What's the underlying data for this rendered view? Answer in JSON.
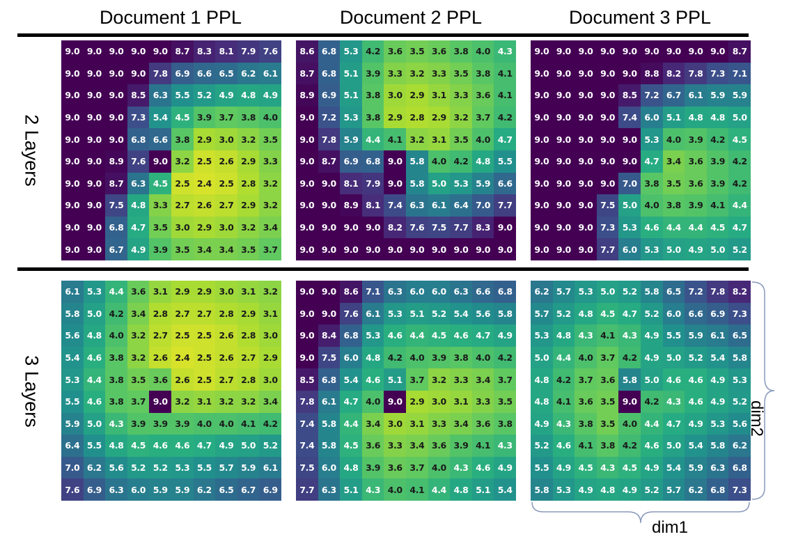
{
  "columns": [
    "Document 1 PPL",
    "Document 2 PPL",
    "Document 3 PPL"
  ],
  "rows": [
    "2 Layers",
    "3 Layers"
  ],
  "axes": {
    "dim1": "dim1",
    "dim2": "dim2"
  },
  "colormap": {
    "name": "viridis",
    "vmin": 2.0,
    "vmax": 9.0
  },
  "chart_data": {
    "type": "heatmap",
    "panels": [
      {
        "row": "2 Layers",
        "column": "Document 1 PPL",
        "values": [
          [
            9.0,
            9.0,
            9.0,
            9.0,
            9.0,
            8.7,
            8.3,
            8.1,
            7.9,
            7.6
          ],
          [
            9.0,
            9.0,
            9.0,
            9.0,
            7.8,
            6.9,
            6.6,
            6.5,
            6.2,
            6.1
          ],
          [
            9.0,
            9.0,
            9.0,
            8.5,
            6.3,
            5.5,
            5.2,
            4.9,
            4.8,
            4.9
          ],
          [
            9.0,
            9.0,
            9.0,
            7.3,
            5.4,
            4.5,
            3.9,
            3.7,
            3.8,
            4.0
          ],
          [
            9.0,
            9.0,
            9.0,
            6.8,
            6.6,
            3.8,
            2.9,
            3.0,
            3.2,
            3.5
          ],
          [
            9.0,
            9.0,
            8.9,
            7.6,
            9.0,
            3.2,
            2.5,
            2.6,
            2.9,
            3.3
          ],
          [
            9.0,
            9.0,
            8.7,
            6.3,
            4.5,
            2.5,
            2.4,
            2.5,
            2.8,
            3.2
          ],
          [
            9.0,
            9.0,
            7.5,
            4.8,
            3.3,
            2.7,
            2.6,
            2.7,
            2.9,
            3.2
          ],
          [
            9.0,
            9.0,
            6.8,
            4.7,
            3.5,
            3.0,
            2.9,
            3.0,
            3.2,
            3.4
          ],
          [
            9.0,
            9.0,
            6.7,
            4.9,
            3.9,
            3.5,
            3.4,
            3.4,
            3.5,
            3.7
          ]
        ]
      },
      {
        "row": "2 Layers",
        "column": "Document 2 PPL",
        "values": [
          [
            8.6,
            6.8,
            5.3,
            4.2,
            3.6,
            3.5,
            3.6,
            3.8,
            4.0,
            4.3
          ],
          [
            8.7,
            6.8,
            5.1,
            3.9,
            3.3,
            3.2,
            3.3,
            3.5,
            3.8,
            4.1
          ],
          [
            8.9,
            6.9,
            5.1,
            3.8,
            3.0,
            2.9,
            3.1,
            3.3,
            3.6,
            4.1
          ],
          [
            9.0,
            7.2,
            5.3,
            3.8,
            2.9,
            2.8,
            2.9,
            3.2,
            3.7,
            4.2
          ],
          [
            9.0,
            7.8,
            5.9,
            4.4,
            4.1,
            3.2,
            3.1,
            3.5,
            4.0,
            4.7
          ],
          [
            9.0,
            8.7,
            6.9,
            6.8,
            9.0,
            5.8,
            4.0,
            4.2,
            4.8,
            5.5
          ],
          [
            9.0,
            9.0,
            8.1,
            7.9,
            9.0,
            5.8,
            5.0,
            5.3,
            5.9,
            6.6
          ],
          [
            9.0,
            9.0,
            8.9,
            8.1,
            7.4,
            6.3,
            6.1,
            6.4,
            7.0,
            7.7
          ],
          [
            9.0,
            9.0,
            9.0,
            9.0,
            8.2,
            7.6,
            7.5,
            7.7,
            8.3,
            9.0
          ],
          [
            9.0,
            9.0,
            9.0,
            9.0,
            9.0,
            9.0,
            9.0,
            9.0,
            9.0,
            9.0
          ]
        ]
      },
      {
        "row": "2 Layers",
        "column": "Document 3 PPL",
        "values": [
          [
            9.0,
            9.0,
            9.0,
            9.0,
            9.0,
            9.0,
            9.0,
            9.0,
            9.0,
            8.7
          ],
          [
            9.0,
            9.0,
            9.0,
            9.0,
            9.0,
            8.8,
            8.2,
            7.8,
            7.3,
            7.1
          ],
          [
            9.0,
            9.0,
            9.0,
            9.0,
            8.5,
            7.2,
            6.7,
            6.1,
            5.9,
            5.9
          ],
          [
            9.0,
            9.0,
            9.0,
            9.0,
            7.4,
            6.0,
            5.1,
            4.8,
            4.8,
            5.0
          ],
          [
            9.0,
            9.0,
            9.0,
            9.0,
            9.0,
            5.3,
            4.0,
            3.9,
            4.2,
            4.5
          ],
          [
            9.0,
            9.0,
            9.0,
            9.0,
            9.0,
            4.7,
            3.4,
            3.6,
            3.9,
            4.2
          ],
          [
            9.0,
            9.0,
            9.0,
            9.0,
            7.0,
            3.8,
            3.5,
            3.6,
            3.9,
            4.2
          ],
          [
            9.0,
            9.0,
            9.0,
            7.5,
            5.0,
            4.0,
            3.8,
            3.9,
            4.1,
            4.4
          ],
          [
            9.0,
            9.0,
            9.0,
            7.3,
            5.3,
            4.6,
            4.4,
            4.4,
            4.5,
            4.7
          ],
          [
            9.0,
            9.0,
            9.0,
            7.7,
            6.0,
            5.3,
            5.0,
            4.9,
            5.0,
            5.2
          ]
        ]
      },
      {
        "row": "3 Layers",
        "column": "Document 1 PPL",
        "values": [
          [
            6.1,
            5.3,
            4.4,
            3.6,
            3.1,
            2.9,
            2.9,
            3.0,
            3.1,
            3.2
          ],
          [
            5.8,
            5.0,
            4.2,
            3.4,
            2.8,
            2.7,
            2.7,
            2.8,
            2.9,
            3.1
          ],
          [
            5.6,
            4.8,
            4.0,
            3.2,
            2.7,
            2.5,
            2.5,
            2.6,
            2.8,
            3.0
          ],
          [
            5.4,
            4.6,
            3.8,
            3.2,
            2.6,
            2.4,
            2.5,
            2.6,
            2.7,
            2.9
          ],
          [
            5.3,
            4.4,
            3.8,
            3.5,
            3.6,
            2.6,
            2.5,
            2.7,
            2.8,
            3.0
          ],
          [
            5.5,
            4.6,
            3.8,
            3.7,
            9.0,
            3.2,
            3.1,
            3.2,
            3.2,
            3.4
          ],
          [
            5.9,
            5.0,
            4.3,
            3.9,
            3.9,
            3.9,
            4.0,
            4.0,
            4.1,
            4.2
          ],
          [
            6.4,
            5.5,
            4.8,
            4.5,
            4.6,
            4.6,
            4.7,
            4.9,
            5.0,
            5.2
          ],
          [
            7.0,
            6.2,
            5.6,
            5.2,
            5.2,
            5.3,
            5.5,
            5.7,
            5.9,
            6.1
          ],
          [
            7.6,
            6.9,
            6.3,
            6.0,
            5.9,
            5.9,
            6.2,
            6.5,
            6.7,
            6.9
          ]
        ]
      },
      {
        "row": "3 Layers",
        "column": "Document 2 PPL",
        "values": [
          [
            9.0,
            9.0,
            8.6,
            7.1,
            6.3,
            6.0,
            6.0,
            6.3,
            6.6,
            6.8
          ],
          [
            9.0,
            9.0,
            7.6,
            6.1,
            5.3,
            5.1,
            5.2,
            5.4,
            5.6,
            5.8
          ],
          [
            9.0,
            8.4,
            6.8,
            5.3,
            4.6,
            4.4,
            4.5,
            4.6,
            4.7,
            4.9
          ],
          [
            9.0,
            7.5,
            6.0,
            4.8,
            4.2,
            4.0,
            3.9,
            3.8,
            4.0,
            4.2
          ],
          [
            8.5,
            6.8,
            5.4,
            4.6,
            5.1,
            3.7,
            3.2,
            3.3,
            3.4,
            3.7
          ],
          [
            7.8,
            6.1,
            4.7,
            4.0,
            9.0,
            2.9,
            3.0,
            3.1,
            3.3,
            3.5
          ],
          [
            7.4,
            5.8,
            4.4,
            3.4,
            3.0,
            3.1,
            3.3,
            3.4,
            3.6,
            3.8
          ],
          [
            7.4,
            5.8,
            4.5,
            3.6,
            3.3,
            3.4,
            3.6,
            3.9,
            4.1,
            4.3
          ],
          [
            7.5,
            6.0,
            4.8,
            3.9,
            3.6,
            3.7,
            4.0,
            4.3,
            4.6,
            4.9
          ],
          [
            7.7,
            6.3,
            5.1,
            4.3,
            4.0,
            4.1,
            4.4,
            4.8,
            5.1,
            5.4
          ]
        ]
      },
      {
        "row": "3 Layers",
        "column": "Document 3 PPL",
        "values": [
          [
            6.2,
            5.7,
            5.3,
            5.0,
            5.2,
            5.8,
            6.5,
            7.2,
            7.8,
            8.2
          ],
          [
            5.7,
            5.2,
            4.8,
            4.5,
            4.7,
            5.2,
            6.0,
            6.6,
            6.9,
            7.3
          ],
          [
            5.3,
            4.8,
            4.3,
            4.1,
            4.3,
            4.9,
            5.5,
            5.9,
            6.1,
            6.5
          ],
          [
            5.0,
            4.4,
            4.0,
            3.7,
            4.2,
            4.9,
            5.0,
            5.2,
            5.4,
            5.8
          ],
          [
            4.8,
            4.2,
            3.7,
            3.6,
            5.8,
            5.0,
            4.6,
            4.6,
            4.9,
            5.3
          ],
          [
            4.8,
            4.1,
            3.6,
            3.5,
            9.0,
            4.2,
            4.3,
            4.6,
            4.9,
            5.2
          ],
          [
            4.9,
            4.3,
            3.8,
            3.5,
            4.0,
            4.4,
            4.7,
            4.9,
            5.3,
            5.6
          ],
          [
            5.2,
            4.6,
            4.1,
            3.8,
            4.2,
            4.6,
            5.0,
            5.4,
            5.8,
            6.2
          ],
          [
            5.5,
            4.9,
            4.5,
            4.3,
            4.5,
            4.9,
            5.4,
            5.9,
            6.3,
            6.8
          ],
          [
            5.8,
            5.3,
            4.9,
            4.8,
            4.9,
            5.2,
            5.7,
            6.2,
            6.8,
            7.3
          ]
        ]
      }
    ]
  }
}
